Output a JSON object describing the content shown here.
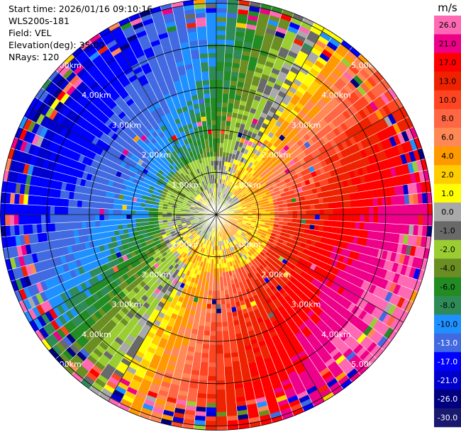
{
  "header": {
    "start_time": "Start time: 2026/01/16 09:10:16",
    "instrument": "WLS200s-181",
    "field": "Field: VEL",
    "elevation": "Elevation(deg): 35.00",
    "nrays": "NRays: 120"
  },
  "colorbar": {
    "unit": "m/s",
    "tick_labels": [
      "26.0",
      "21.0",
      "17.0",
      "13.0",
      "10.0",
      "8.0",
      "6.0",
      "4.0",
      "2.0",
      "1.0",
      "0.0",
      "-1.0",
      "-2.0",
      "-4.0",
      "-6.0",
      "-8.0",
      "-10.0",
      "-13.0",
      "-17.0",
      "-21.0",
      "-26.0",
      "-30.0"
    ],
    "bin_colors": [
      "#ff69b4",
      "#ee0088",
      "#ff0000",
      "#ee2200",
      "#ff4422",
      "#ff6644",
      "#ff8855",
      "#ff9900",
      "#ffcc00",
      "#ffff00",
      "#a9a9a9",
      "#696969",
      "#9acd32",
      "#6b8e23",
      "#228b22",
      "#2e8b57",
      "#1e90ff",
      "#4169e1",
      "#0000ff",
      "#0000cd",
      "#000080",
      "#191970"
    ]
  },
  "chart_data": {
    "type": "ppi",
    "field": "VEL",
    "units": "m/s",
    "nrays": 120,
    "elevation_deg": 35.0,
    "range_rings_km": [
      1.0,
      2.0,
      3.0,
      4.0,
      5.0
    ],
    "ring_labels": [
      "1.00km",
      "2.00km",
      "3.00km",
      "4.00km",
      "5.00km"
    ],
    "max_range_km": 5.1,
    "wind_pattern": {
      "approach_direction_deg": 300,
      "max_speed_ms": 22
    }
  }
}
